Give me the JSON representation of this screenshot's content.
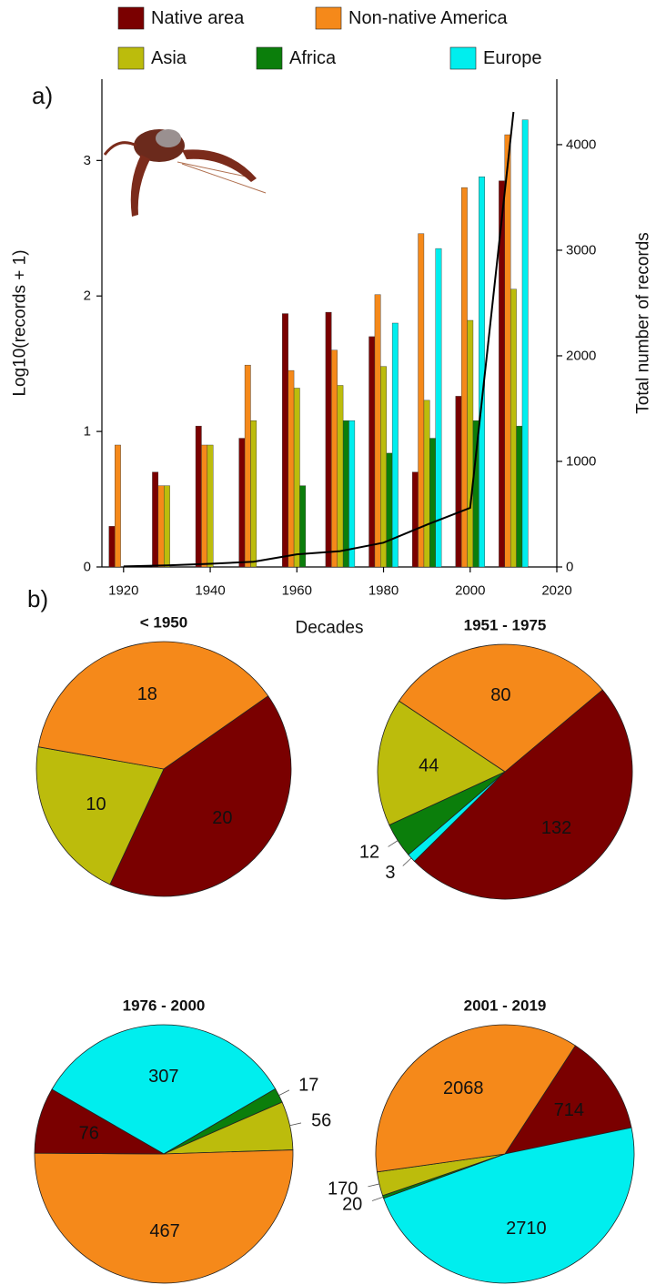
{
  "chart_data": [
    {
      "type": "bar",
      "panel_label": "a)",
      "x": [
        1920,
        1930,
        1940,
        1950,
        1960,
        1970,
        1980,
        1990,
        2000,
        2010
      ],
      "xlim": [
        1915,
        2020
      ],
      "xticks": [
        1920,
        1940,
        1960,
        1980,
        2000,
        2020
      ],
      "ylim": [
        0,
        3.6
      ],
      "yticks": [
        0,
        1,
        2,
        3
      ],
      "y2lim": [
        0,
        4620
      ],
      "y2ticks": [
        0,
        1000,
        2000,
        3000,
        4000
      ],
      "xlabel": "Decades",
      "ylabel": "Log10(records + 1)",
      "y2label": "Total number of records",
      "series": [
        {
          "name": "Native area",
          "color": "#7a0000",
          "values": [
            0.3,
            0.7,
            1.04,
            0.95,
            1.87,
            1.88,
            1.7,
            0.7,
            1.26,
            2.85
          ]
        },
        {
          "name": "Non-native America",
          "color": "#f5891a",
          "values": [
            0.9,
            0.6,
            0.9,
            1.49,
            1.45,
            1.6,
            2.01,
            2.46,
            2.8,
            3.19
          ]
        },
        {
          "name": "Asia",
          "color": "#bcbc0c",
          "values": [
            null,
            0.6,
            0.9,
            1.08,
            1.32,
            1.34,
            1.48,
            1.23,
            1.82,
            2.05
          ]
        },
        {
          "name": "Africa",
          "color": "#0b7e0b",
          "values": [
            null,
            null,
            null,
            null,
            0.6,
            1.08,
            0.84,
            0.95,
            1.08,
            1.04
          ]
        },
        {
          "name": "Europe",
          "color": "#00eeee",
          "values": [
            null,
            null,
            null,
            null,
            null,
            1.08,
            1.8,
            2.35,
            2.88,
            3.3
          ]
        },
        {
          "type": "line",
          "axis": "y2",
          "color": "#000000",
          "values": [
            5,
            15,
            30,
            50,
            120,
            150,
            230,
            400,
            560,
            4310
          ]
        }
      ]
    },
    {
      "type": "pie",
      "panel_label": "b)",
      "title": "< 1950",
      "categories": [
        "Native area",
        "Asia",
        "Non-native America"
      ],
      "values": [
        20,
        10,
        18
      ]
    },
    {
      "type": "pie",
      "title": "1951 - 1975",
      "categories": [
        "Native area",
        "Europe",
        "Africa",
        "Asia",
        "Non-native America"
      ],
      "values": [
        132,
        3,
        12,
        44,
        80
      ]
    },
    {
      "type": "pie",
      "title": "1976 - 2000",
      "categories": [
        "Europe",
        "Africa",
        "Asia",
        "Non-native America",
        "Native area"
      ],
      "values": [
        307,
        17,
        56,
        467,
        76
      ]
    },
    {
      "type": "pie",
      "title": "2001 - 2019",
      "categories": [
        "Native area",
        "Europe",
        "Africa",
        "Asia",
        "Non-native America"
      ],
      "values": [
        714,
        2710,
        20,
        170,
        2068
      ]
    }
  ]
}
